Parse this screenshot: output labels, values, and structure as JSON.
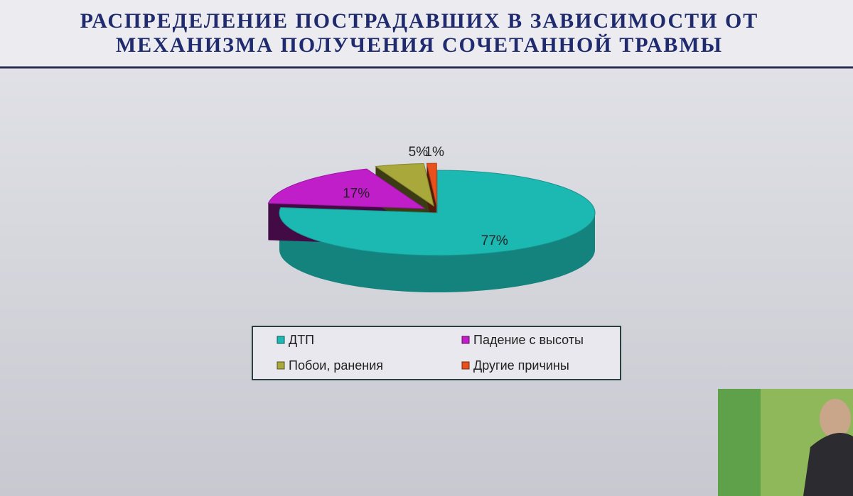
{
  "chart_data": {
    "type": "pie",
    "title": [
      "РАСПРЕДЕЛЕНИЕ ПОСТРАДАВШИХ В ЗАВИСИМОСТИ ОТ",
      "МЕХАНИЗМА ПОЛУЧЕНИЯ  СОЧЕТАННОЙ ТРАВМЫ"
    ],
    "categories": [
      "ДТП",
      "Падение с высоты",
      "Побои, ранения",
      "Другие причины"
    ],
    "values": [
      77,
      17,
      5,
      1
    ],
    "value_labels": [
      "77%",
      "17%",
      "5%",
      "1%"
    ],
    "colors": [
      "#1cb9b2",
      "#c01ec8",
      "#a9a83a",
      "#e8501c"
    ]
  }
}
